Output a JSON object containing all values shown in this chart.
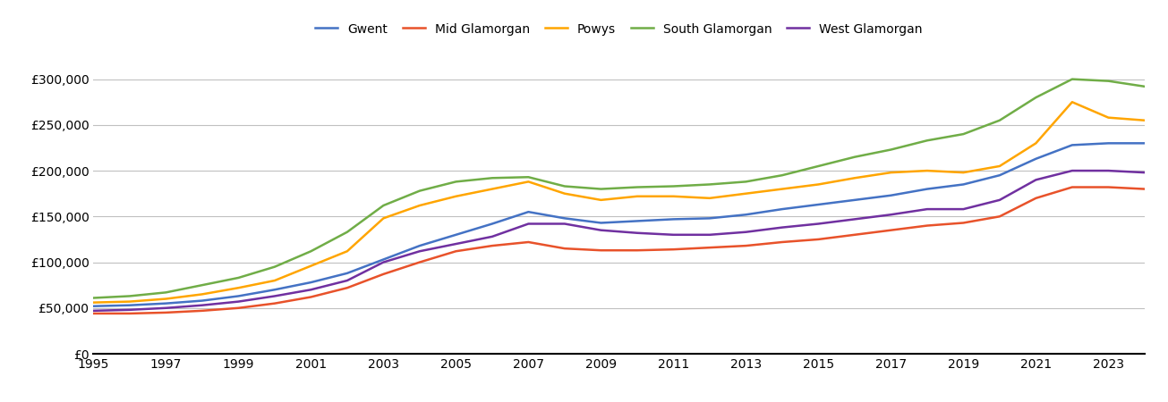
{
  "series": {
    "Gwent": {
      "color": "#4472C4",
      "values": [
        52000,
        53000,
        55000,
        58000,
        63000,
        70000,
        78000,
        88000,
        103000,
        118000,
        130000,
        142000,
        155000,
        148000,
        143000,
        145000,
        147000,
        148000,
        152000,
        158000,
        163000,
        168000,
        173000,
        180000,
        185000,
        195000,
        213000,
        228000,
        230000,
        230000
      ]
    },
    "Mid Glamorgan": {
      "color": "#E8522A",
      "values": [
        44000,
        44000,
        45000,
        47000,
        50000,
        55000,
        62000,
        72000,
        87000,
        100000,
        112000,
        118000,
        122000,
        115000,
        113000,
        113000,
        114000,
        116000,
        118000,
        122000,
        125000,
        130000,
        135000,
        140000,
        143000,
        150000,
        170000,
        182000,
        182000,
        180000
      ]
    },
    "Powys": {
      "color": "#FFA500",
      "values": [
        56000,
        57000,
        60000,
        65000,
        72000,
        80000,
        96000,
        112000,
        148000,
        162000,
        172000,
        180000,
        188000,
        175000,
        168000,
        172000,
        172000,
        170000,
        175000,
        180000,
        185000,
        192000,
        198000,
        200000,
        198000,
        205000,
        230000,
        275000,
        258000,
        255000
      ]
    },
    "South Glamorgan": {
      "color": "#70AD47",
      "values": [
        61000,
        63000,
        67000,
        75000,
        83000,
        95000,
        112000,
        133000,
        162000,
        178000,
        188000,
        192000,
        193000,
        183000,
        180000,
        182000,
        183000,
        185000,
        188000,
        195000,
        205000,
        215000,
        223000,
        233000,
        240000,
        255000,
        280000,
        300000,
        298000,
        292000
      ]
    },
    "West Glamorgan": {
      "color": "#7030A0",
      "values": [
        47000,
        48000,
        50000,
        53000,
        57000,
        63000,
        70000,
        80000,
        100000,
        112000,
        120000,
        128000,
        142000,
        142000,
        135000,
        132000,
        130000,
        130000,
        133000,
        138000,
        142000,
        147000,
        152000,
        158000,
        158000,
        168000,
        190000,
        200000,
        200000,
        198000
      ]
    }
  },
  "years": [
    1995,
    1996,
    1997,
    1998,
    1999,
    2000,
    2001,
    2002,
    2003,
    2004,
    2005,
    2006,
    2007,
    2008,
    2009,
    2010,
    2011,
    2012,
    2013,
    2014,
    2015,
    2016,
    2017,
    2018,
    2019,
    2020,
    2021,
    2022,
    2023,
    2024
  ],
  "xlim": [
    1995,
    2024
  ],
  "ylim": [
    0,
    325000
  ],
  "yticks": [
    0,
    50000,
    100000,
    150000,
    200000,
    250000,
    300000
  ],
  "xticks": [
    1995,
    1997,
    1999,
    2001,
    2003,
    2005,
    2007,
    2009,
    2011,
    2013,
    2015,
    2017,
    2019,
    2021,
    2023
  ],
  "background_color": "#ffffff",
  "grid_color": "#c0c0c0"
}
